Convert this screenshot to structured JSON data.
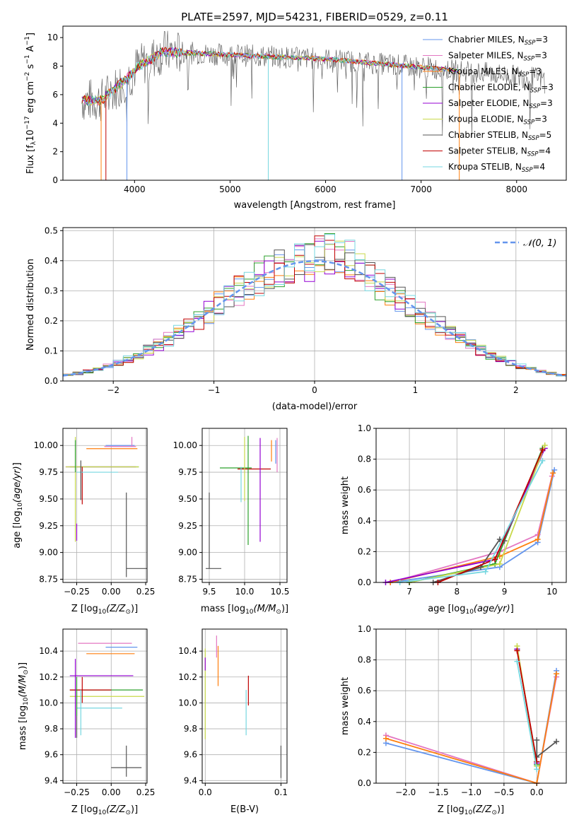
{
  "figure_title": "PLATE=2597, MJD=54231, FIBERID=0529, z=0.11",
  "legend_labels": [
    "Chabrier MILES, N",
    "Salpeter MILES, N",
    "Kroupa MILES, N",
    "Chabrier ELODIE, N",
    "Salpeter ELODIE, N",
    "Kroupa ELODIE, N",
    "Chabrier STELIB, N",
    "Salpeter STELIB, N",
    "Kroupa STELIB, N"
  ],
  "legend_nssp": [
    "=3",
    "=3",
    "=3",
    "=3",
    "=3",
    "=3",
    "=5",
    "=4",
    "=4"
  ],
  "legend_sub": "SSP",
  "gauss_label": "𝒩(0, 1)",
  "chart_data": [
    {
      "type": "line",
      "id": "spectrum",
      "title": "PLATE=2597, MJD=54231, FIBERID=0529, z=0.11",
      "xlabel": "wavelength [Angstrom, rest frame]",
      "ylabel_pre": "Flux [f",
      "ylabel_mid": "10",
      "ylabel_exp": "−17",
      "ylabel_post": " erg cm",
      "xlim": [
        3250,
        8520
      ],
      "ylim": [
        0,
        10.8
      ],
      "xticks": [
        4000,
        5000,
        6000,
        7000,
        8000
      ],
      "yticks": [
        0,
        2,
        4,
        6,
        8,
        10
      ],
      "grid": false,
      "legend_placement": "right",
      "series_colors": [
        "#6495ed",
        "#e377c2",
        "#ff7f0e",
        "#2ca02c",
        "#9400d3",
        "#c8d94a",
        "#555555",
        "#c00000",
        "#76d7e0"
      ]
    },
    {
      "type": "line",
      "id": "residuals",
      "xlabel": "(data-model)/error",
      "ylabel": "Normed distribution",
      "xlim": [
        -2.5,
        2.5
      ],
      "ylim": [
        0,
        0.51
      ],
      "xticks": [
        -2,
        -1,
        0,
        1,
        2
      ],
      "yticks": [
        0.0,
        0.1,
        0.2,
        0.3,
        0.4,
        0.5
      ],
      "grid": true,
      "legend_placement": "top-right"
    },
    {
      "type": "scatter",
      "id": "age-vs-Z",
      "xlabel": "Z [log",
      "ylabel": "age  [log",
      "xlim": [
        -0.35,
        0.26
      ],
      "ylim": [
        8.72,
        10.16
      ],
      "xticks": [
        -0.25,
        0.0,
        0.25
      ],
      "yticks": [
        8.75,
        9.0,
        9.25,
        9.5,
        9.75,
        10.0
      ],
      "grid": true,
      "points": [
        {
          "x": 0.1,
          "y": 10.0,
          "xerr": [
            0.14,
            0.07
          ],
          "yerr": [
            0,
            0
          ],
          "color": "#6495ed"
        },
        {
          "x": 0.15,
          "y": 9.99,
          "xerr": [
            0.2,
            0.03
          ],
          "yerr": [
            0,
            0.09
          ],
          "color": "#e377c2"
        },
        {
          "x": 0.1,
          "y": 9.97,
          "xerr": [
            0.28,
            0.09
          ],
          "yerr": [
            0,
            0
          ],
          "color": "#ff7f0e"
        },
        {
          "x": 0.0,
          "y": 9.8,
          "xerr": [
            0.3,
            0.2
          ],
          "yerr": [
            0,
            0
          ],
          "color": "#2ca02c"
        },
        {
          "x": -0.04,
          "y": 9.8,
          "xerr": [
            0.29,
            0.22
          ],
          "yerr": [
            0,
            0
          ],
          "color": "#9400d3"
        },
        {
          "x": -0.26,
          "y": 9.8,
          "xerr": [
            0.07,
            0.46
          ],
          "yerr": [
            0.7,
            0.28
          ],
          "color": "#c8d94a"
        },
        {
          "x": 0.11,
          "y": 8.85,
          "xerr": [
            0,
            0.15
          ],
          "yerr": [
            0.08,
            0.71
          ],
          "color": "#555555"
        },
        {
          "x": -0.21,
          "y": 9.8,
          "xerr": [
            0,
            0
          ],
          "yerr": [
            0.35,
            0
          ],
          "color": "#c00000"
        },
        {
          "x": -0.07,
          "y": 9.75,
          "xerr": [
            0.18,
            0.12
          ],
          "yerr": [
            0,
            0
          ],
          "color": "#76d7e0"
        },
        {
          "x": -0.25,
          "y": 9.27,
          "xerr": [
            0,
            0
          ],
          "yerr": [
            0.16,
            0
          ],
          "color": "#9400d3"
        },
        {
          "x": -0.26,
          "y": 10.05,
          "xerr": [
            0,
            0
          ],
          "yerr": [
            0.3,
            0
          ],
          "color": "#2ca02c"
        },
        {
          "x": -0.22,
          "y": 9.86,
          "xerr": [
            0,
            0
          ],
          "yerr": [
            0.37,
            0
          ],
          "color": "#555555"
        }
      ]
    },
    {
      "type": "scatter",
      "id": "age-vs-mass",
      "xlabel": "mass [log",
      "xlim": [
        9.4,
        10.6
      ],
      "ylim": [
        8.72,
        10.16
      ],
      "xticks": [
        9.5,
        10.0,
        10.5
      ],
      "yticks": [
        8.75,
        9.0,
        9.25,
        9.5,
        9.75,
        10.0
      ],
      "grid": true,
      "points": [
        {
          "x": 9.5,
          "y": 8.85,
          "xerr": [
            0.05,
            0.17
          ],
          "yerr": [
            0,
            0.71
          ],
          "color": "#555555"
        },
        {
          "x": 10.0,
          "y": 9.79,
          "xerr": [
            0.35,
            0.1
          ],
          "yerr": [
            0,
            0
          ],
          "color": "#2ca02c"
        },
        {
          "x": 10.1,
          "y": 9.78,
          "xerr": [
            0.2,
            0.27
          ],
          "yerr": [
            0,
            0
          ],
          "color": "#c00000"
        },
        {
          "x": 10.05,
          "y": 10.02,
          "xerr": [
            0,
            0
          ],
          "yerr": [
            0.95,
            0.07
          ],
          "color": "#2ca02c"
        },
        {
          "x": 10.0,
          "y": 9.7,
          "xerr": [
            0,
            0
          ],
          "yerr": [
            0.22,
            0.38
          ],
          "color": "#c8d94a"
        },
        {
          "x": 10.22,
          "y": 10.0,
          "xerr": [
            0,
            0
          ],
          "yerr": [
            0.9,
            0.07
          ],
          "color": "#9400d3"
        },
        {
          "x": 10.38,
          "y": 9.95,
          "xerr": [
            0,
            0
          ],
          "yerr": [
            0.1,
            0.1
          ],
          "color": "#ff7f0e"
        },
        {
          "x": 10.44,
          "y": 9.95,
          "xerr": [
            0,
            0
          ],
          "yerr": [
            0.12,
            0.1
          ],
          "color": "#6495ed"
        },
        {
          "x": 10.46,
          "y": 9.9,
          "xerr": [
            0,
            0
          ],
          "yerr": [
            0.15,
            0.17
          ],
          "color": "#e377c2"
        },
        {
          "x": 9.95,
          "y": 9.65,
          "xerr": [
            0,
            0
          ],
          "yerr": [
            0.18,
            0.15
          ],
          "color": "#76d7e0"
        }
      ]
    },
    {
      "type": "line",
      "id": "weight-vs-age",
      "xlabel": "age  [log",
      "ylabel": "mass weight",
      "xlim": [
        6.3,
        10.3
      ],
      "ylim": [
        0,
        1.0
      ],
      "xticks": [
        7,
        8,
        9,
        10
      ],
      "yticks": [
        0.0,
        0.2,
        0.4,
        0.6,
        0.8,
        1.0
      ],
      "grid": true,
      "series": [
        {
          "color": "#6495ed",
          "x": [
            6.6,
            8.9,
            9.7,
            10.05
          ],
          "y": [
            0.0,
            0.1,
            0.26,
            0.73
          ]
        },
        {
          "color": "#e377c2",
          "x": [
            6.6,
            8.9,
            9.7,
            10.0
          ],
          "y": [
            0.0,
            0.2,
            0.31,
            0.69
          ]
        },
        {
          "color": "#ff7f0e",
          "x": [
            6.6,
            8.9,
            9.7,
            10.02
          ],
          "y": [
            0.0,
            0.17,
            0.28,
            0.71
          ]
        },
        {
          "color": "#2ca02c",
          "x": [
            7.0,
            8.8,
            9.8
          ],
          "y": [
            0.0,
            0.12,
            0.87
          ]
        },
        {
          "color": "#9400d3",
          "x": [
            6.5,
            8.8,
            9.85
          ],
          "y": [
            0.0,
            0.15,
            0.87
          ]
        },
        {
          "color": "#c8d94a",
          "x": [
            7.0,
            8.9,
            9.85
          ],
          "y": [
            0.0,
            0.12,
            0.89
          ]
        },
        {
          "color": "#555555",
          "x": [
            7.5,
            8.5,
            8.9,
            9.0
          ],
          "y": [
            0.0,
            0.1,
            0.28,
            0.27
          ]
        },
        {
          "color": "#c00000",
          "x": [
            7.6,
            8.8,
            9.8
          ],
          "y": [
            0.0,
            0.15,
            0.86
          ]
        },
        {
          "color": "#76d7e0",
          "x": [
            6.8,
            8.6,
            9.8
          ],
          "y": [
            0.0,
            0.07,
            0.79
          ]
        }
      ]
    },
    {
      "type": "scatter",
      "id": "mass-vs-Z",
      "xlabel": "Z [log",
      "ylabel": "mass [log",
      "xlim": [
        -0.35,
        0.26
      ],
      "ylim": [
        9.38,
        10.57
      ],
      "xticks": [
        -0.25,
        0.0,
        0.25
      ],
      "yticks": [
        9.4,
        9.6,
        9.8,
        10.0,
        10.2,
        10.4
      ],
      "grid": true,
      "points": [
        {
          "x": 0.1,
          "y": 10.46,
          "xerr": [
            0.34,
            0.05
          ],
          "yerr": [
            0,
            0
          ],
          "color": "#e377c2"
        },
        {
          "x": 0.1,
          "y": 10.43,
          "xerr": [
            0.14,
            0.09
          ],
          "yerr": [
            0,
            0
          ],
          "color": "#6495ed"
        },
        {
          "x": 0.1,
          "y": 10.38,
          "xerr": [
            0.28,
            0.07
          ],
          "yerr": [
            0,
            0
          ],
          "color": "#ff7f0e"
        },
        {
          "x": 0.0,
          "y": 10.21,
          "xerr": [
            0.3,
            0.16
          ],
          "yerr": [
            0,
            0
          ],
          "color": "#9400d3"
        },
        {
          "x": 0.0,
          "y": 10.1,
          "xerr": [
            0.3,
            0.23
          ],
          "yerr": [
            0,
            0
          ],
          "color": "#2ca02c"
        },
        {
          "x": 0.0,
          "y": 10.05,
          "xerr": [
            0.3,
            0.24
          ],
          "yerr": [
            0,
            0
          ],
          "color": "#c8d94a"
        },
        {
          "x": -0.1,
          "y": 10.1,
          "xerr": [
            0.2,
            0.1
          ],
          "yerr": [
            0,
            0
          ],
          "color": "#c00000"
        },
        {
          "x": -0.1,
          "y": 9.96,
          "xerr": [
            0.15,
            0.18
          ],
          "yerr": [
            0,
            0
          ],
          "color": "#76d7e0"
        },
        {
          "x": 0.11,
          "y": 9.5,
          "xerr": [
            0.11,
            0.11
          ],
          "yerr": [
            0.07,
            0.17
          ],
          "color": "#555555"
        },
        {
          "x": -0.26,
          "y": 10.0,
          "xerr": [
            0,
            0
          ],
          "yerr": [
            0.27,
            0.34
          ],
          "color": "#9400d3"
        },
        {
          "x": -0.21,
          "y": 10.0,
          "xerr": [
            0,
            0
          ],
          "yerr": [
            0.0,
            0.2
          ],
          "color": "#c00000"
        },
        {
          "x": -0.22,
          "y": 9.9,
          "xerr": [
            0,
            0
          ],
          "yerr": [
            0.15,
            0.2
          ],
          "color": "#76d7e0"
        },
        {
          "x": -0.25,
          "y": 9.9,
          "xerr": [
            0,
            0
          ],
          "yerr": [
            0.17,
            0.2
          ],
          "color": "#555555"
        },
        {
          "x": -0.25,
          "y": 9.9,
          "xerr": [
            0,
            0
          ],
          "yerr": [
            0.0,
            0.3
          ],
          "color": "#2ca02c"
        }
      ]
    },
    {
      "type": "scatter",
      "id": "mass-vs-EBV",
      "xlabel": "E(B-V)",
      "xlim": [
        -0.004,
        0.108
      ],
      "ylim": [
        9.38,
        10.57
      ],
      "xticks": [
        0.0,
        0.1
      ],
      "yticks": [
        9.4,
        9.6,
        9.8,
        10.0,
        10.2,
        10.4
      ],
      "grid": true,
      "points": [
        {
          "x": 0.0,
          "y": 9.82,
          "xerr": [
            0,
            0
          ],
          "yerr": [
            0.1,
            0.6
          ],
          "color": "#c8d94a"
        },
        {
          "x": 0.0,
          "y": 10.3,
          "xerr": [
            0,
            0
          ],
          "yerr": [
            0.05,
            0.05
          ],
          "color": "#9400d3"
        },
        {
          "x": 0.015,
          "y": 10.4,
          "xerr": [
            0,
            0
          ],
          "yerr": [
            0.05,
            0.12
          ],
          "color": "#e377c2"
        },
        {
          "x": 0.017,
          "y": 10.28,
          "xerr": [
            0,
            0
          ],
          "yerr": [
            0.15,
            0.16
          ],
          "color": "#ff7f0e"
        },
        {
          "x": 0.057,
          "y": 10.1,
          "xerr": [
            0,
            0
          ],
          "yerr": [
            0.12,
            0.11
          ],
          "color": "#c00000"
        },
        {
          "x": 0.054,
          "y": 9.92,
          "xerr": [
            0,
            0
          ],
          "yerr": [
            0.17,
            0.18
          ],
          "color": "#76d7e0"
        },
        {
          "x": 0.1,
          "y": 9.6,
          "xerr": [
            0,
            0
          ],
          "yerr": [
            0.18,
            0.07
          ],
          "color": "#555555"
        }
      ]
    },
    {
      "type": "line",
      "id": "weight-vs-Z",
      "xlabel": "Z [log",
      "ylabel": "mass weight",
      "xlim": [
        -2.45,
        0.45
      ],
      "ylim": [
        0,
        1.0
      ],
      "xticks": [
        -2.0,
        -1.5,
        -1.0,
        -0.5,
        0.0
      ],
      "yticks": [
        0.0,
        0.2,
        0.4,
        0.6,
        0.8,
        1.0
      ],
      "grid": true,
      "series": [
        {
          "color": "#6495ed",
          "x": [
            -2.3,
            0.0,
            0.3
          ],
          "y": [
            0.26,
            0.0,
            0.73
          ]
        },
        {
          "color": "#e377c2",
          "x": [
            -2.3,
            0.0,
            0.3
          ],
          "y": [
            0.31,
            0.0,
            0.69
          ]
        },
        {
          "color": "#ff7f0e",
          "x": [
            -2.3,
            0.0,
            0.3
          ],
          "y": [
            0.29,
            0.0,
            0.71
          ]
        },
        {
          "color": "#2ca02c",
          "x": [
            -0.3,
            0.0
          ],
          "y": [
            0.87,
            0.12
          ]
        },
        {
          "color": "#9400d3",
          "x": [
            -0.3,
            0.0
          ],
          "y": [
            0.87,
            0.13
          ]
        },
        {
          "color": "#c8d94a",
          "x": [
            -0.3,
            0.0
          ],
          "y": [
            0.89,
            0.11
          ]
        },
        {
          "color": "#555555",
          "x": [
            0.0,
            0.0,
            0.3
          ],
          "y": [
            0.28,
            0.17,
            0.27
          ]
        },
        {
          "color": "#c00000",
          "x": [
            -0.3,
            0.0
          ],
          "y": [
            0.86,
            0.14
          ]
        },
        {
          "color": "#76d7e0",
          "x": [
            -0.3,
            0.0
          ],
          "y": [
            0.79,
            0.09
          ]
        }
      ]
    }
  ]
}
